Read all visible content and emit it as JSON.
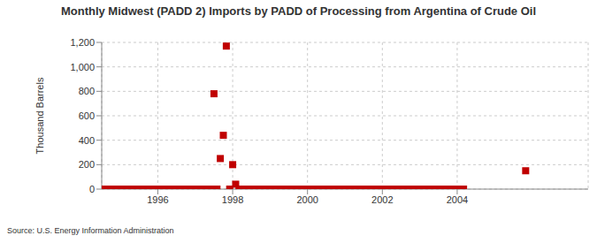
{
  "chart_data": {
    "type": "scatter",
    "title": "Monthly Midwest (PADD 2) Imports by PADD of Processing from Argentina of Crude Oil",
    "y_label": "Thousand Barrels",
    "source": "Source: U.S. Energy Information Administration",
    "x": [
      1994.58,
      1994.67,
      1994.75,
      1994.83,
      1994.92,
      1995.0,
      1995.08,
      1995.17,
      1995.25,
      1995.33,
      1995.42,
      1995.5,
      1995.58,
      1995.67,
      1995.75,
      1995.83,
      1995.92,
      1996.0,
      1996.08,
      1996.17,
      1996.25,
      1996.33,
      1996.42,
      1996.5,
      1996.58,
      1996.67,
      1996.75,
      1996.83,
      1996.92,
      1997.0,
      1997.08,
      1997.17,
      1997.25,
      1997.33,
      1997.42,
      1997.5,
      1997.58,
      1997.67,
      1997.75,
      1997.83,
      1997.92,
      1998.0,
      1998.08,
      1998.17,
      1998.25,
      1998.33,
      1998.42,
      1998.5,
      1998.58,
      1998.67,
      1998.75,
      1998.83,
      1998.92,
      1999.0,
      1999.08,
      1999.17,
      1999.25,
      1999.33,
      1999.42,
      1999.5,
      1999.58,
      1999.67,
      1999.75,
      1999.83,
      1999.92,
      2000.0,
      2000.08,
      2000.17,
      2000.25,
      2000.33,
      2000.42,
      2000.5,
      2000.58,
      2000.67,
      2000.75,
      2000.83,
      2000.92,
      2001.0,
      2001.08,
      2001.17,
      2001.25,
      2001.33,
      2001.42,
      2001.5,
      2001.58,
      2001.67,
      2001.75,
      2001.83,
      2001.92,
      2002.0,
      2002.08,
      2002.17,
      2002.25,
      2002.33,
      2002.42,
      2002.5,
      2002.58,
      2002.67,
      2002.75,
      2002.83,
      2002.92,
      2003.0,
      2003.08,
      2003.17,
      2003.25,
      2003.33,
      2003.42,
      2003.5,
      2003.58,
      2003.67,
      2003.75,
      2003.83,
      2003.92,
      2004.0,
      2004.08,
      2004.17,
      2005.83
    ],
    "values": [
      0,
      0,
      0,
      0,
      0,
      0,
      0,
      0,
      0,
      0,
      0,
      0,
      0,
      0,
      0,
      0,
      0,
      0,
      0,
      0,
      0,
      0,
      0,
      0,
      0,
      0,
      0,
      0,
      0,
      0,
      0,
      0,
      0,
      0,
      0,
      780,
      0,
      250,
      440,
      1170,
      0,
      200,
      40,
      0,
      0,
      0,
      0,
      0,
      0,
      0,
      0,
      0,
      0,
      0,
      0,
      0,
      0,
      0,
      0,
      0,
      0,
      0,
      0,
      0,
      0,
      0,
      0,
      0,
      0,
      0,
      0,
      0,
      0,
      0,
      0,
      0,
      0,
      0,
      0,
      0,
      0,
      0,
      0,
      0,
      0,
      0,
      0,
      0,
      0,
      0,
      0,
      0,
      0,
      0,
      0,
      0,
      0,
      0,
      0,
      0,
      0,
      0,
      0,
      0,
      0,
      0,
      0,
      0,
      0,
      0,
      0,
      0,
      0,
      0,
      0,
      0,
      150
    ],
    "color": "#c00000",
    "marker": "square",
    "xlim": [
      1994.5,
      2007.5
    ],
    "xticks": [
      1996,
      1998,
      2000,
      2002,
      2004
    ],
    "ylim": [
      0,
      1200
    ],
    "yticks": [
      0,
      200,
      400,
      600,
      800,
      {
        "value": 1000,
        "label": "1,000"
      },
      {
        "value": 1200,
        "label": "1,200"
      }
    ],
    "grid": true
  }
}
